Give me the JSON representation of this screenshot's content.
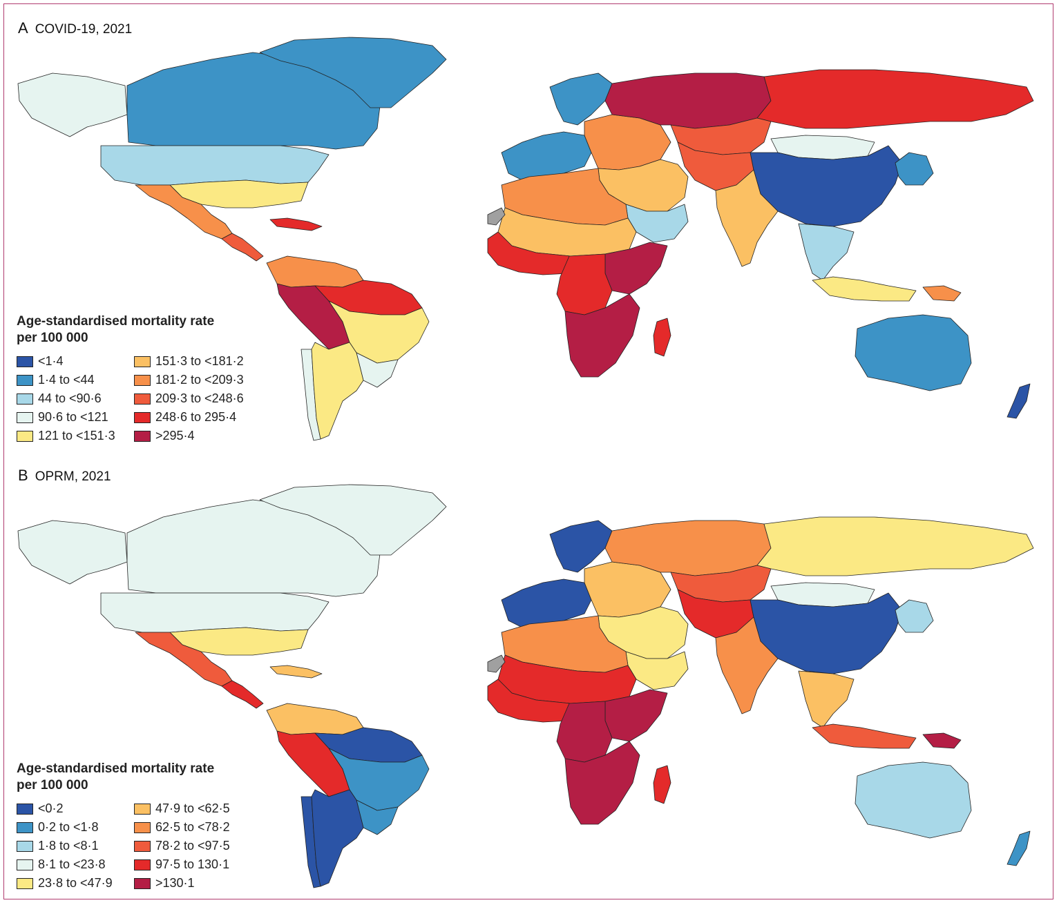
{
  "palette": [
    "#2b54a6",
    "#3d93c6",
    "#a8d8e8",
    "#e6f4f0",
    "#fbe984",
    "#fbc063",
    "#f7904a",
    "#ef5b3c",
    "#e42a2a",
    "#b41e45"
  ],
  "land_no_data": "#a0a0a0",
  "panels": [
    {
      "letter": "A",
      "title": "COVID-19, 2021",
      "legend_title_line1": "Age-standardised mortality rate",
      "legend_title_line2": "per 100 000",
      "legend": [
        "<1·4",
        "1·4 to <44",
        "44 to <90·6",
        "90·6 to <121",
        "121 to <151·3",
        "151·3 to <181·2",
        "181·2 to <209·3",
        "209·3 to <248·6",
        "248·6 to 295·4",
        ">295·4"
      ],
      "regions": {
        "canada": 1,
        "greenland": 1,
        "alaska": 3,
        "usa": 2,
        "usa_south": 4,
        "mexico": 6,
        "central_america": 7,
        "caribbean": 8,
        "venezuela_colombia": 6,
        "brazil_north": 8,
        "brazil_central": 4,
        "brazil_south": 3,
        "peru_bolivia": 9,
        "argentina": 4,
        "chile": 3,
        "western_europe": 1,
        "scandinavia": 1,
        "eastern_europe": 6,
        "russia_west": 9,
        "russia_east": 8,
        "kazakhstan": 7,
        "central_asia": 7,
        "middle_east": 5,
        "saudi": 2,
        "north_africa": 6,
        "sahel": 5,
        "west_africa": 8,
        "central_africa": 8,
        "east_africa": 9,
        "southern_africa": 9,
        "madagascar": 8,
        "mongolia": 3,
        "china": 0,
        "india": 5,
        "southeast_asia": 2,
        "indonesia": 4,
        "japan_korea": 1,
        "australia": 1,
        "new_zealand": 0,
        "png": 6
      }
    },
    {
      "letter": "B",
      "title": "OPRM, 2021",
      "legend_title_line1": "Age-standardised mortality rate",
      "legend_title_line2": "per 100 000",
      "legend": [
        "<0·2",
        "0·2 to <1·8",
        "1·8 to <8·1",
        "8·1 to <23·8",
        "23·8 to <47·9",
        "47·9 to <62·5",
        "62·5 to <78·2",
        "78·2 to <97·5",
        "97·5 to 130·1",
        ">130·1"
      ],
      "regions": {
        "canada": 3,
        "greenland": 3,
        "alaska": 3,
        "usa": 3,
        "usa_south": 4,
        "mexico": 7,
        "central_america": 8,
        "caribbean": 5,
        "venezuela_colombia": 5,
        "brazil_north": 0,
        "brazil_central": 1,
        "brazil_south": 1,
        "peru_bolivia": 8,
        "argentina": 0,
        "chile": 0,
        "western_europe": 0,
        "scandinavia": 0,
        "eastern_europe": 5,
        "russia_west": 6,
        "russia_east": 4,
        "kazakhstan": 7,
        "central_asia": 8,
        "middle_east": 4,
        "saudi": 4,
        "north_africa": 6,
        "sahel": 8,
        "west_africa": 8,
        "central_africa": 9,
        "east_africa": 9,
        "southern_africa": 9,
        "madagascar": 8,
        "mongolia": 3,
        "china": 0,
        "india": 6,
        "southeast_asia": 5,
        "indonesia": 7,
        "japan_korea": 2,
        "australia": 2,
        "new_zealand": 1,
        "png": 9
      }
    }
  ]
}
